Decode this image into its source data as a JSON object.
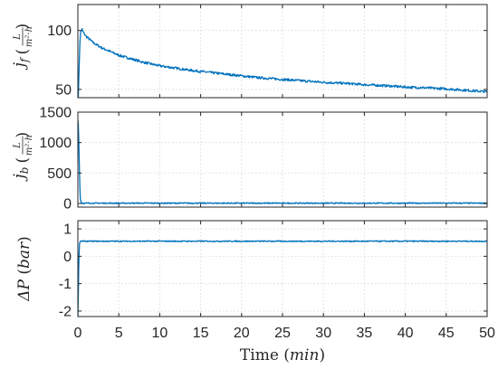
{
  "chart_data": [
    {
      "type": "line",
      "panel": "top",
      "ylabel_symbol": "j",
      "ylabel_subscript": "f",
      "ylabel_unit_numerator": "L",
      "ylabel_unit_denominator": "m²·h",
      "xlim": [
        0,
        50
      ],
      "ylim": [
        43,
        122
      ],
      "yticks": [
        50,
        100
      ],
      "xticks": [
        0,
        5,
        10,
        15,
        20,
        25,
        30,
        35,
        40,
        45,
        50
      ],
      "grid": true,
      "series": [
        {
          "color": "#0072BD",
          "x": [
            0,
            0.05,
            0.15,
            0.25,
            0.35,
            0.5,
            0.7,
            1,
            1.5,
            2,
            3,
            4,
            5,
            6,
            7,
            8,
            10,
            12,
            14,
            16,
            18,
            20,
            22,
            25,
            28,
            30,
            33,
            35,
            38,
            40,
            42,
            45,
            47,
            49,
            50
          ],
          "y": [
            43,
            43,
            68,
            90,
            99,
            101,
            98,
            95,
            92,
            89,
            85,
            82,
            79,
            77,
            75,
            73,
            70,
            68,
            66,
            64.5,
            63,
            61.5,
            60,
            58.5,
            57,
            56,
            55,
            54,
            53,
            52,
            51.5,
            50.5,
            49.5,
            48.5,
            48
          ]
        }
      ]
    },
    {
      "type": "line",
      "panel": "middle",
      "ylabel_symbol": "j",
      "ylabel_subscript": "b",
      "ylabel_unit_numerator": "L",
      "ylabel_unit_denominator": "m²·h",
      "xlim": [
        0,
        50
      ],
      "ylim": [
        -60,
        1500
      ],
      "yticks": [
        0,
        500,
        1000,
        1500
      ],
      "xticks": [
        0,
        5,
        10,
        15,
        20,
        25,
        30,
        35,
        40,
        45,
        50
      ],
      "grid": true,
      "series": [
        {
          "color": "#0072BD",
          "x": [
            0,
            0.05,
            0.1,
            0.15,
            0.2,
            0.25,
            0.3,
            0.4,
            0.5,
            1,
            5,
            10,
            20,
            30,
            40,
            50
          ],
          "y": [
            1370,
            1300,
            1100,
            800,
            500,
            250,
            80,
            20,
            5,
            5,
            5,
            5,
            5,
            5,
            5,
            5
          ]
        }
      ]
    },
    {
      "type": "line",
      "panel": "bottom",
      "ylabel_symbol": "ΔP",
      "ylabel_unit": "bar",
      "xlabel_text": "Time",
      "xlabel_unit": "min",
      "xlim": [
        0,
        50
      ],
      "ylim": [
        -2.2,
        1.3
      ],
      "yticks": [
        -2,
        -1,
        0,
        1
      ],
      "ytick_labels": [
        "-2",
        "-1",
        "0",
        "1"
      ],
      "xticks": [
        0,
        5,
        10,
        15,
        20,
        25,
        30,
        35,
        40,
        45,
        50
      ],
      "grid": true,
      "series": [
        {
          "color": "#0072BD",
          "x": [
            0,
            0.05,
            0.1,
            0.15,
            0.2,
            0.3,
            0.4,
            0.5,
            1,
            5,
            10,
            20,
            30,
            40,
            50
          ],
          "y": [
            -2.2,
            -1.5,
            -0.5,
            0.1,
            0.45,
            0.55,
            0.56,
            0.55,
            0.55,
            0.55,
            0.55,
            0.55,
            0.55,
            0.55,
            0.55
          ]
        }
      ]
    }
  ]
}
